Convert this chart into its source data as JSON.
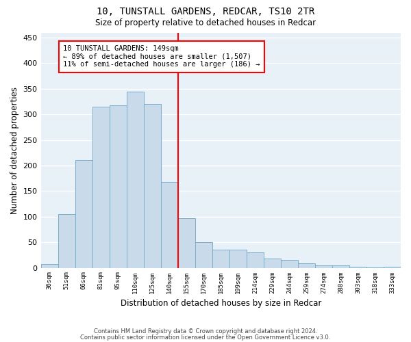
{
  "title1": "10, TUNSTALL GARDENS, REDCAR, TS10 2TR",
  "title2": "Size of property relative to detached houses in Redcar",
  "xlabel": "Distribution of detached houses by size in Redcar",
  "ylabel": "Number of detached properties",
  "categories": [
    "36sqm",
    "51sqm",
    "66sqm",
    "81sqm",
    "95sqm",
    "110sqm",
    "125sqm",
    "140sqm",
    "155sqm",
    "170sqm",
    "185sqm",
    "199sqm",
    "214sqm",
    "229sqm",
    "244sqm",
    "259sqm",
    "274sqm",
    "288sqm",
    "303sqm",
    "318sqm",
    "333sqm"
  ],
  "values": [
    7,
    105,
    210,
    315,
    318,
    345,
    320,
    168,
    97,
    50,
    36,
    35,
    30,
    18,
    15,
    9,
    5,
    5,
    2,
    1,
    2
  ],
  "bar_color": "#c9daea",
  "bar_edge_color": "#7aaecb",
  "vertical_line_color": "red",
  "annotation_text": "10 TUNSTALL GARDENS: 149sqm\n← 89% of detached houses are smaller (1,507)\n11% of semi-detached houses are larger (186) →",
  "annotation_box_color": "white",
  "annotation_box_edge_color": "red",
  "footer1": "Contains HM Land Registry data © Crown copyright and database right 2024.",
  "footer2": "Contains public sector information licensed under the Open Government Licence v3.0.",
  "ylim": [
    0,
    460
  ],
  "plot_bg_color": "#e8f0f8",
  "fig_bg_color": "#ffffff",
  "grid_color": "#ffffff"
}
